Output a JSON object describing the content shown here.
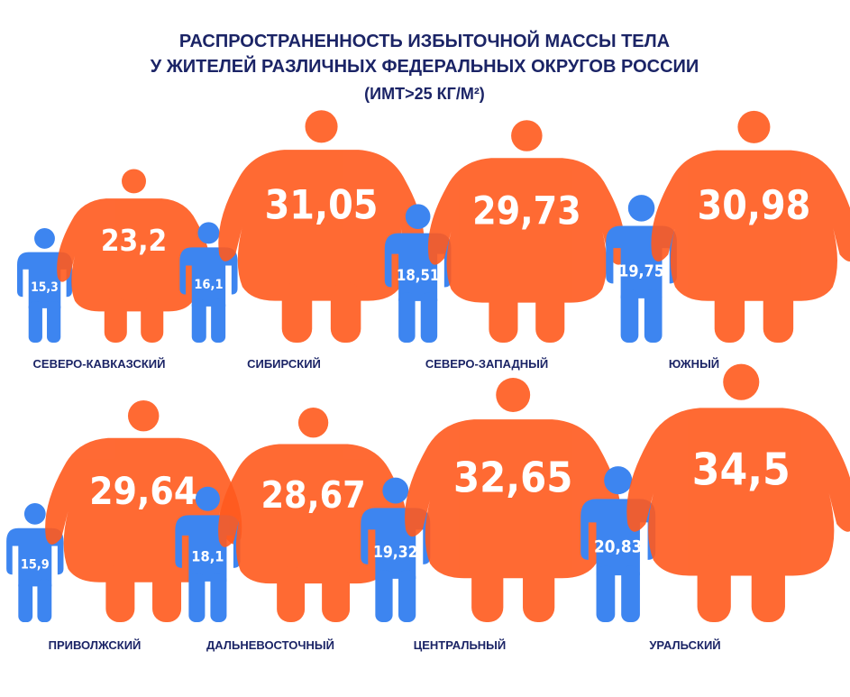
{
  "chart_data": {
    "type": "pictogram",
    "title": [
      "РАСПРОСТРАНЕННОСТЬ ИЗБЫТОЧНОЙ МАССЫ ТЕЛА",
      "У ЖИТЕЛЕЙ РАЗЛИЧНЫХ ФЕДЕРАЛЬНЫХ ОКРУГОВ РОССИИ"
    ],
    "subtitle": "(ИМТ>25 КГ/М²)",
    "categories": [
      "СЕВЕРО-КАВКАЗСКИЙ",
      "СИБИРСКИЙ",
      "СЕВЕРО-ЗАПАДНЫЙ",
      "ЮЖНЫЙ",
      "ПРИВОЛЖСКИЙ",
      "ДАЛЬНЕВОСТОЧНЫЙ",
      "ЦЕНТРАЛЬНЫЙ",
      "УРАЛЬСКИЙ"
    ],
    "series": [
      {
        "color": "#3d85f0",
        "values": [
          15.3,
          16.1,
          18.51,
          19.75,
          15.9,
          18.1,
          19.32,
          20.83
        ],
        "value_labels": [
          "15,3",
          "16,1",
          "18,51",
          "19,75",
          "15,9",
          "18,1",
          "19,32",
          "20,83"
        ]
      },
      {
        "color": "#ff5a1e",
        "values": [
          23.2,
          31.05,
          29.73,
          30.98,
          29.64,
          28.67,
          32.65,
          34.5
        ],
        "value_labels": [
          "23,2",
          "31,05",
          "29,73",
          "30,98",
          "29,64",
          "28,67",
          "32,65",
          "34,5"
        ]
      }
    ]
  }
}
